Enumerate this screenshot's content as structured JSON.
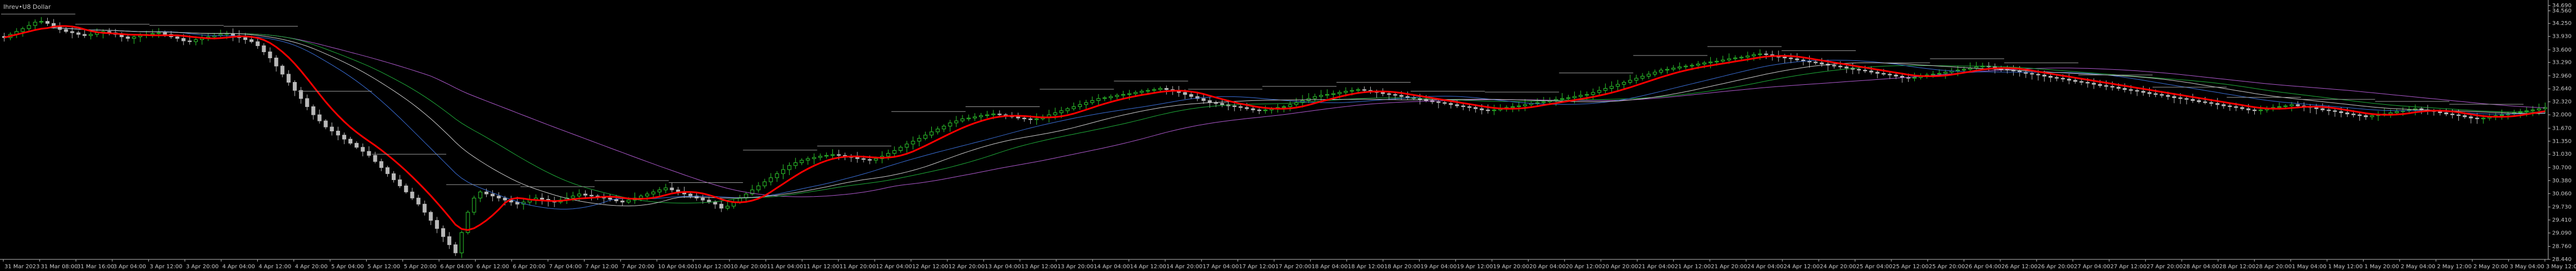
{
  "chart_data": {
    "type": "candlestick",
    "title": "Ihrev•U8 Dollar",
    "y_ticks": [
      "34.690",
      "34.560",
      "34.250",
      "33.930",
      "33.600",
      "33.290",
      "32.960",
      "32.640",
      "32.320",
      "32.000",
      "31.670",
      "31.350",
      "31.030",
      "30.700",
      "30.380",
      "30.060",
      "29.730",
      "29.410",
      "29.090",
      "28.760",
      "28.440"
    ],
    "ylim": [
      28.44,
      34.69
    ],
    "x_tick_labels": [
      "31 Mar 2023",
      "31 Mar 08:00",
      "31 Mar 16:00",
      "3 Apr 04:00",
      "3 Apr 12:00",
      "3 Apr 20:00",
      "4 Apr 04:00",
      "4 Apr 12:00",
      "4 Apr 20:00",
      "5 Apr 04:00",
      "5 Apr 12:00",
      "5 Apr 20:00",
      "6 Apr 04:00",
      "6 Apr 12:00",
      "6 Apr 20:00",
      "7 Apr 04:00",
      "7 Apr 12:00",
      "7 Apr 20:00",
      "10 Apr 04:00",
      "10 Apr 12:00",
      "10 Apr 20:00",
      "11 Apr 04:00",
      "11 Apr 12:00",
      "11 Apr 20:00",
      "12 Apr 04:00",
      "12 Apr 12:00",
      "12 Apr 20:00",
      "13 Apr 04:00",
      "13 Apr 12:00",
      "13 Apr 20:00",
      "14 Apr 04:00",
      "14 Apr 12:00",
      "14 Apr 20:00",
      "17 Apr 04:00",
      "17 Apr 12:00",
      "17 Apr 20:00",
      "18 Apr 04:00",
      "18 Apr 12:00",
      "18 Apr 20:00",
      "19 Apr 04:00",
      "19 Apr 12:00",
      "19 Apr 20:00",
      "20 Apr 04:00",
      "20 Apr 12:00",
      "20 Apr 20:00",
      "21 Apr 04:00",
      "21 Apr 12:00",
      "21 Apr 20:00",
      "24 Apr 04:00",
      "24 Apr 12:00",
      "24 Apr 20:00",
      "25 Apr 04:00",
      "25 Apr 12:00",
      "25 Apr 20:00",
      "26 Apr 04:00",
      "26 Apr 12:00",
      "26 Apr 20:00",
      "27 Apr 04:00",
      "27 Apr 12:00",
      "27 Apr 20:00",
      "28 Apr 04:00",
      "28 Apr 12:00",
      "28 Apr 20:00",
      "1 May 04:00",
      "1 May 12:00",
      "1 May 20:00",
      "2 May 04:00",
      "2 May 12:00",
      "2 May 20:00",
      "3 May 04:00",
      "3 May 12:00"
    ],
    "closes": [
      33.9,
      33.98,
      34.05,
      34.12,
      34.2,
      34.28,
      34.3,
      34.25,
      34.18,
      34.1,
      34.05,
      34.02,
      33.98,
      33.95,
      33.98,
      34.02,
      34.05,
      34.02,
      33.98,
      33.92,
      33.88,
      33.92,
      33.95,
      33.98,
      34.0,
      34.02,
      33.98,
      33.92,
      33.88,
      33.82,
      33.8,
      33.85,
      33.9,
      33.92,
      33.95,
      33.98,
      34.0,
      33.95,
      33.9,
      33.85,
      33.8,
      33.7,
      33.55,
      33.4,
      33.2,
      33.0,
      32.8,
      32.6,
      32.4,
      32.2,
      32.0,
      31.85,
      31.7,
      31.6,
      31.5,
      31.4,
      31.3,
      31.2,
      31.1,
      31.0,
      30.85,
      30.7,
      30.55,
      30.4,
      30.25,
      30.1,
      29.95,
      29.8,
      29.6,
      29.4,
      29.2,
      29.0,
      28.8,
      28.6,
      29.1,
      29.6,
      29.95,
      30.1,
      30.05,
      30.0,
      29.95,
      29.9,
      29.85,
      29.8,
      29.85,
      29.9,
      29.95,
      29.92,
      29.88,
      29.85,
      29.9,
      29.95,
      30.0,
      30.05,
      30.02,
      30.0,
      29.98,
      29.95,
      29.92,
      29.88,
      29.85,
      29.9,
      29.95,
      30.0,
      30.05,
      30.1,
      30.15,
      30.2,
      30.15,
      30.1,
      30.05,
      30.0,
      29.95,
      29.9,
      29.85,
      29.8,
      29.7,
      29.75,
      29.85,
      29.95,
      30.05,
      30.15,
      30.25,
      30.35,
      30.45,
      30.55,
      30.65,
      30.75,
      30.82,
      30.88,
      30.92,
      30.95,
      30.98,
      31.0,
      31.02,
      31.0,
      30.98,
      30.95,
      30.92,
      30.9,
      30.88,
      30.92,
      30.98,
      31.05,
      31.12,
      31.2,
      31.28,
      31.35,
      31.42,
      31.5,
      31.58,
      31.65,
      31.72,
      31.8,
      31.85,
      31.9,
      31.92,
      31.95,
      31.98,
      32.0,
      32.02,
      32.0,
      31.98,
      31.95,
      31.92,
      31.9,
      31.88,
      31.9,
      31.95,
      32.0,
      32.05,
      32.1,
      32.15,
      32.2,
      32.25,
      32.3,
      32.35,
      32.4,
      32.42,
      32.45,
      32.48,
      32.5,
      32.52,
      32.55,
      32.58,
      32.6,
      32.62,
      32.65,
      32.62,
      32.58,
      32.55,
      32.5,
      32.45,
      32.4,
      32.35,
      32.3,
      32.28,
      32.25,
      32.22,
      32.2,
      32.18,
      32.15,
      32.12,
      32.1,
      32.12,
      32.15,
      32.18,
      32.2,
      32.25,
      32.3,
      32.35,
      32.4,
      32.45,
      32.48,
      32.5,
      32.52,
      32.55,
      32.58,
      32.6,
      32.62,
      32.6,
      32.58,
      32.55,
      32.52,
      32.5,
      32.48,
      32.45,
      32.42,
      32.4,
      32.38,
      32.35,
      32.32,
      32.3,
      32.28,
      32.25,
      32.22,
      32.2,
      32.18,
      32.15,
      32.12,
      32.1,
      32.12,
      32.15,
      32.18,
      32.2,
      32.22,
      32.25,
      32.28,
      32.3,
      32.32,
      32.35,
      32.38,
      32.4,
      32.42,
      32.45,
      32.48,
      32.5,
      32.55,
      32.6,
      32.65,
      32.7,
      32.75,
      32.8,
      32.85,
      32.9,
      32.95,
      33.0,
      33.05,
      33.1,
      33.12,
      33.15,
      33.18,
      33.2,
      33.22,
      33.25,
      33.28,
      33.3,
      33.32,
      33.35,
      33.38,
      33.4,
      33.42,
      33.45,
      33.48,
      33.5,
      33.48,
      33.45,
      33.42,
      33.4,
      33.38,
      33.35,
      33.32,
      33.3,
      33.28,
      33.25,
      33.22,
      33.2,
      33.18,
      33.15,
      33.12,
      33.1,
      33.08,
      33.05,
      33.02,
      33.0,
      32.98,
      32.95,
      32.92,
      32.9,
      32.92,
      32.95,
      32.98,
      33.0,
      33.02,
      33.05,
      33.08,
      33.1,
      33.12,
      33.15,
      33.18,
      33.2,
      33.18,
      33.15,
      33.12,
      33.1,
      33.08,
      33.05,
      33.02,
      33.0,
      32.98,
      32.95,
      32.92,
      32.9,
      32.88,
      32.85,
      32.82,
      32.8,
      32.78,
      32.75,
      32.72,
      32.7,
      32.68,
      32.65,
      32.62,
      32.6,
      32.58,
      32.55,
      32.52,
      32.5,
      32.48,
      32.45,
      32.42,
      32.4,
      32.38,
      32.35,
      32.32,
      32.3,
      32.28,
      32.25,
      32.22,
      32.2,
      32.18,
      32.15,
      32.12,
      32.1,
      32.12,
      32.15,
      32.18,
      32.2,
      32.22,
      32.25,
      32.22,
      32.2,
      32.18,
      32.15,
      32.12,
      32.1,
      32.08,
      32.05,
      32.02,
      32.0,
      31.98,
      31.95,
      31.98,
      32.0,
      32.02,
      32.05,
      32.08,
      32.1,
      32.12,
      32.15,
      32.12,
      32.1,
      32.08,
      32.05,
      32.02,
      32.0,
      31.98,
      31.95,
      31.92,
      31.9,
      31.92,
      31.95,
      31.98,
      32.0,
      32.02,
      32.05,
      32.08,
      32.1,
      32.12,
      32.15,
      32.18
    ],
    "ma_red": {
      "color": "#ff0000",
      "width": 3
    },
    "ma_blue": {
      "color": "#3a6fd8",
      "width": 1
    },
    "ma_green": {
      "color": "#1fae3a",
      "width": 1
    },
    "ma_purple": {
      "color": "#b05ad0",
      "width": 1
    },
    "ma_gray": {
      "color": "#cfcfcf",
      "width": 1
    },
    "bull_color": "#2ecc2e",
    "bear_color": "#b8b8b8"
  }
}
